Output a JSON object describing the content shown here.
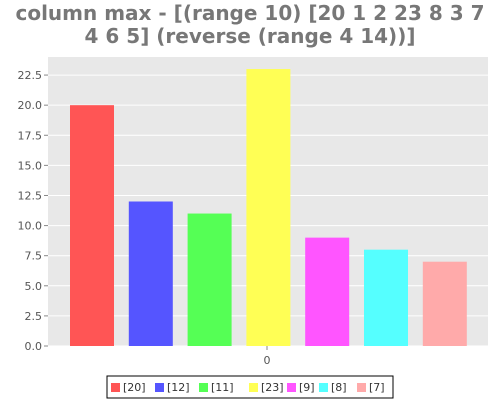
{
  "chart_data": {
    "type": "bar",
    "title_lines": [
      "column max - [(range 10) [20 1 2 23 8 3 7",
      "4 6 5] (reverse (range 4 14))]"
    ],
    "categories": [
      "0"
    ],
    "ylim": [
      0,
      24
    ],
    "y_ticks": [
      "0.0",
      "2.5",
      "5.0",
      "7.5",
      "10.0",
      "12.5",
      "15.0",
      "17.5",
      "20.0",
      "22.5"
    ],
    "series": [
      {
        "name": "[20]",
        "values": [
          20
        ],
        "color": "#ff5555"
      },
      {
        "name": "[12]",
        "values": [
          12
        ],
        "color": "#5555ff"
      },
      {
        "name": "[11]",
        "values": [
          11
        ],
        "color": "#55ff55"
      },
      {
        "name": "[23]",
        "values": [
          23
        ],
        "color": "#ffff55"
      },
      {
        "name": "[9]",
        "values": [
          9
        ],
        "color": "#ff55ff"
      },
      {
        "name": "[8]",
        "values": [
          8
        ],
        "color": "#55ffff"
      },
      {
        "name": "[7]",
        "values": [
          7
        ],
        "color": "#ffaaaa"
      }
    ],
    "grid": true,
    "legend_position": "bottom",
    "background": "#e8e8e8"
  }
}
